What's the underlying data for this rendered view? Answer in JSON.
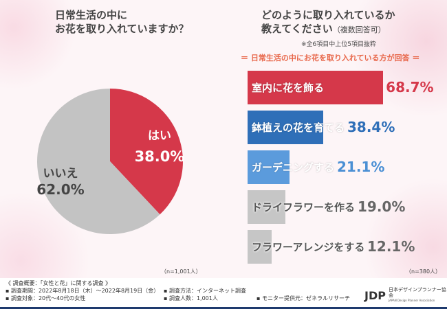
{
  "left_title": [
    "日常生活の中に",
    "お花を取り入れていますか？"
  ],
  "right_title": [
    "どのように取り入れているか",
    "教えてください"
  ],
  "right_title_suffix": "（複数回答可）",
  "note": "※全6項目中上位5項目抜粋",
  "subtitle": "＝ 日常生活の中にお花を取り入れている方が回答 ＝",
  "pie_n": "（n=1,001人）",
  "bar_n": "（n=380人）",
  "chart_data": [
    {
      "type": "pie",
      "slices": [
        {
          "label": "はい",
          "value": 38.0,
          "display": "38.0%",
          "color": "#d5384a"
        },
        {
          "label": "いいえ",
          "value": 62.0,
          "display": "62.0%",
          "color": "#c3c3c3"
        }
      ]
    },
    {
      "type": "bar",
      "orientation": "horizontal",
      "categories": [
        "室内に花を飾る",
        "鉢植えの花を育てる",
        "ガーデニングする",
        "ドライフラワーを作る",
        "フラワーアレンジをする"
      ],
      "values": [
        68.7,
        38.4,
        21.1,
        19.0,
        12.1
      ],
      "labels": [
        "68.7%",
        "38.4%",
        "21.1%",
        "19.0%",
        "12.1%"
      ],
      "colors": [
        "#d5384a",
        "#2f6fb8",
        "#5b9bdc",
        "#c6c6c6",
        "#c6c6c6"
      ],
      "value_colors": [
        "#d5384a",
        "#2f6fb8",
        "#4a8fd4",
        "#666666",
        "#666666"
      ]
    }
  ],
  "footer": {
    "heading": "《 調査概要：「女性と花」に関する調査 》",
    "period": "▪ 調査期間：2022年8月18日（木）～2022年8月19日（金）",
    "method": "▪ 調査方法：インターネット調査",
    "target": "▪ 調査対象：20代～40代の女性",
    "count": "▪ 調査人数：1,001人",
    "monitor": "▪ モニター提供元：ゼネラルリサーチ"
  },
  "logo": {
    "mark": "JDP",
    "name": "日本デザインプランナー協会",
    "english": "JAPAN Design Planner Association"
  }
}
